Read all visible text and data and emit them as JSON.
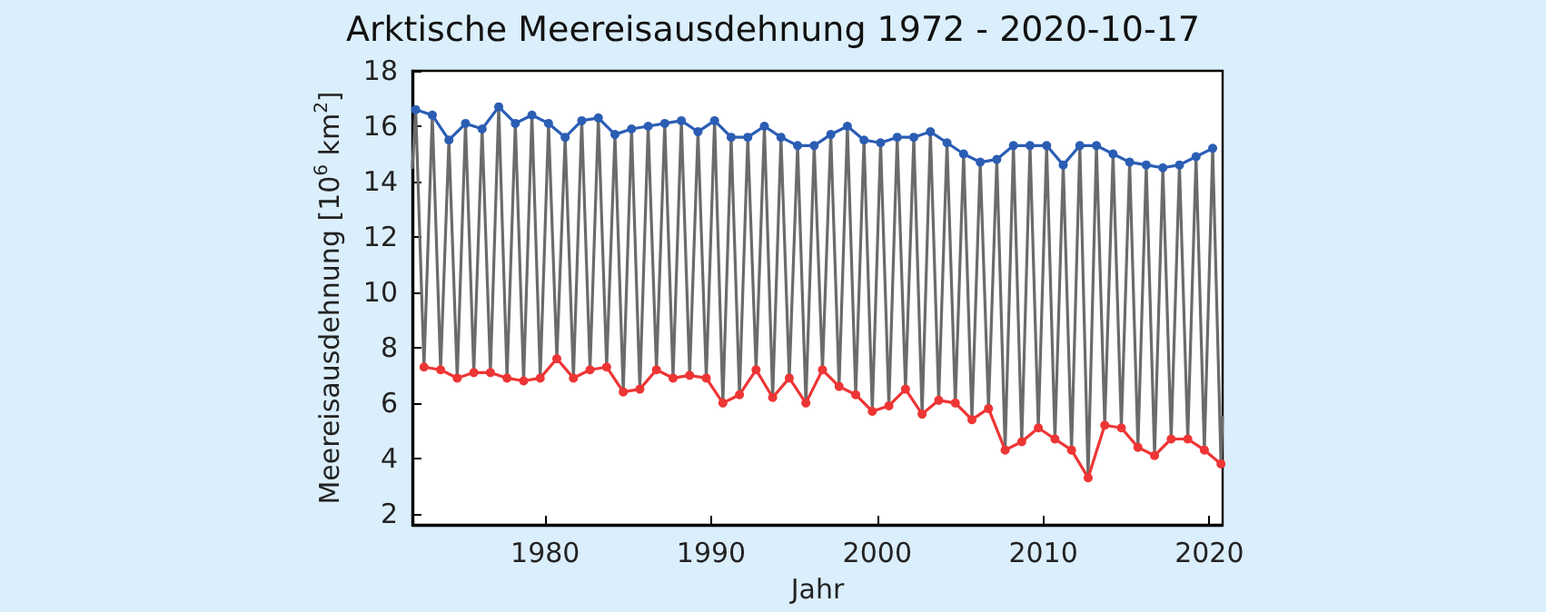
{
  "chart_data": {
    "type": "line",
    "title": "Arktische Meereisausdehnung 1972 - 2020-10-17",
    "xlabel": "Jahr",
    "ylabel": "Meereisausdehnung [10$^{6}$ km$^{2}$]",
    "xlim": [
      1972,
      2020.8
    ],
    "xticks": [
      1980,
      1990,
      2000,
      2010,
      2020
    ],
    "ylim": [
      1.6,
      18
    ],
    "yticks": [
      2,
      4,
      6,
      8,
      10,
      12,
      14,
      16,
      18
    ],
    "grid": false,
    "line_style": "solid",
    "series": [
      {
        "color": "#6b6b6b",
        "marker": "none",
        "x": [
          1972,
          1972.2,
          1972.7,
          1973.2,
          1973.7,
          1974.2,
          1974.7,
          1975.2,
          1975.7,
          1976.2,
          1976.7,
          1977.2,
          1977.7,
          1978.2,
          1978.7,
          1979.2,
          1979.7,
          1980.2,
          1980.7,
          1981.2,
          1981.7,
          1982.2,
          1982.7,
          1983.2,
          1983.7,
          1984.2,
          1984.7,
          1985.2,
          1985.7,
          1986.2,
          1986.7,
          1987.2,
          1987.7,
          1988.2,
          1988.7,
          1989.2,
          1989.7,
          1990.2,
          1990.7,
          1991.2,
          1991.7,
          1992.2,
          1992.7,
          1993.2,
          1993.7,
          1994.2,
          1994.7,
          1995.2,
          1995.7,
          1996.2,
          1996.7,
          1997.2,
          1997.7,
          1998.2,
          1998.7,
          1999.2,
          1999.7,
          2000.2,
          2000.7,
          2001.2,
          2001.7,
          2002.2,
          2002.7,
          2003.2,
          2003.7,
          2004.2,
          2004.7,
          2005.2,
          2005.7,
          2006.2,
          2006.7,
          2007.2,
          2007.7,
          2008.2,
          2008.7,
          2009.2,
          2009.7,
          2010.2,
          2010.7,
          2011.2,
          2011.7,
          2012.2,
          2012.7,
          2013.2,
          2013.7,
          2014.2,
          2014.7,
          2015.2,
          2015.7,
          2016.2,
          2016.7,
          2017.2,
          2017.7,
          2018.2,
          2018.7,
          2019.2,
          2019.7,
          2020.2,
          2020.7,
          2020.79
        ],
        "values": [
          14.5,
          16.6,
          7.3,
          16.4,
          7.2,
          15.5,
          6.9,
          16.1,
          7.1,
          15.9,
          7.1,
          16.7,
          6.9,
          16.1,
          6.8,
          16.4,
          6.9,
          16.1,
          7.6,
          15.6,
          6.9,
          16.2,
          7.2,
          16.3,
          7.3,
          15.7,
          6.4,
          15.9,
          6.5,
          16.0,
          7.2,
          16.1,
          6.9,
          16.2,
          7.0,
          15.8,
          6.9,
          16.2,
          6.0,
          15.6,
          6.3,
          15.6,
          7.2,
          16.0,
          6.2,
          15.6,
          6.9,
          15.3,
          6.0,
          15.3,
          7.2,
          15.7,
          6.6,
          16.0,
          6.3,
          15.5,
          5.7,
          15.4,
          5.9,
          15.6,
          6.5,
          15.6,
          5.6,
          15.8,
          6.1,
          15.4,
          6.0,
          15.0,
          5.4,
          14.7,
          5.8,
          14.8,
          4.3,
          15.3,
          4.6,
          15.3,
          5.1,
          15.3,
          4.7,
          14.6,
          4.3,
          15.3,
          3.3,
          15.3,
          5.2,
          15.0,
          5.1,
          14.7,
          4.4,
          14.6,
          4.1,
          14.5,
          4.7,
          14.6,
          4.7,
          14.9,
          4.3,
          15.2,
          3.8,
          5.5
        ]
      },
      {
        "color": "#2b5db4",
        "marker": "circle",
        "x": [
          1972.2,
          1973.2,
          1974.2,
          1975.2,
          1976.2,
          1977.2,
          1978.2,
          1979.2,
          1980.2,
          1981.2,
          1982.2,
          1983.2,
          1984.2,
          1985.2,
          1986.2,
          1987.2,
          1988.2,
          1989.2,
          1990.2,
          1991.2,
          1992.2,
          1993.2,
          1994.2,
          1995.2,
          1996.2,
          1997.2,
          1998.2,
          1999.2,
          2000.2,
          2001.2,
          2002.2,
          2003.2,
          2004.2,
          2005.2,
          2006.2,
          2007.2,
          2008.2,
          2009.2,
          2010.2,
          2011.2,
          2012.2,
          2013.2,
          2014.2,
          2015.2,
          2016.2,
          2017.2,
          2018.2,
          2019.2,
          2020.2
        ],
        "values": [
          16.6,
          16.4,
          15.5,
          16.1,
          15.9,
          16.7,
          16.1,
          16.4,
          16.1,
          15.6,
          16.2,
          16.3,
          15.7,
          15.9,
          16.0,
          16.1,
          16.2,
          15.8,
          16.2,
          15.6,
          15.6,
          16.0,
          15.6,
          15.3,
          15.3,
          15.7,
          16.0,
          15.5,
          15.4,
          15.6,
          15.6,
          15.8,
          15.4,
          15.0,
          14.7,
          14.8,
          15.3,
          15.3,
          15.3,
          14.6,
          15.3,
          15.3,
          15.0,
          14.7,
          14.6,
          14.5,
          14.6,
          14.9,
          15.2
        ]
      },
      {
        "color": "#ee3535",
        "marker": "circle",
        "x": [
          1972.7,
          1973.7,
          1974.7,
          1975.7,
          1976.7,
          1977.7,
          1978.7,
          1979.7,
          1980.7,
          1981.7,
          1982.7,
          1983.7,
          1984.7,
          1985.7,
          1986.7,
          1987.7,
          1988.7,
          1989.7,
          1990.7,
          1991.7,
          1992.7,
          1993.7,
          1994.7,
          1995.7,
          1996.7,
          1997.7,
          1998.7,
          1999.7,
          2000.7,
          2001.7,
          2002.7,
          2003.7,
          2004.7,
          2005.7,
          2006.7,
          2007.7,
          2008.7,
          2009.7,
          2010.7,
          2011.7,
          2012.7,
          2013.7,
          2014.7,
          2015.7,
          2016.7,
          2017.7,
          2018.7,
          2019.7,
          2020.7
        ],
        "values": [
          7.3,
          7.2,
          6.9,
          7.1,
          7.1,
          6.9,
          6.8,
          6.9,
          7.6,
          6.9,
          7.2,
          7.3,
          6.4,
          6.5,
          7.2,
          6.9,
          7.0,
          6.9,
          6.0,
          6.3,
          7.2,
          6.2,
          6.9,
          6.0,
          7.2,
          6.6,
          6.3,
          5.7,
          5.9,
          6.5,
          5.6,
          6.1,
          6.0,
          5.4,
          5.8,
          4.3,
          4.6,
          5.1,
          4.7,
          4.3,
          3.3,
          5.2,
          5.1,
          4.4,
          4.1,
          4.7,
          4.7,
          4.3,
          3.8
        ]
      }
    ]
  }
}
